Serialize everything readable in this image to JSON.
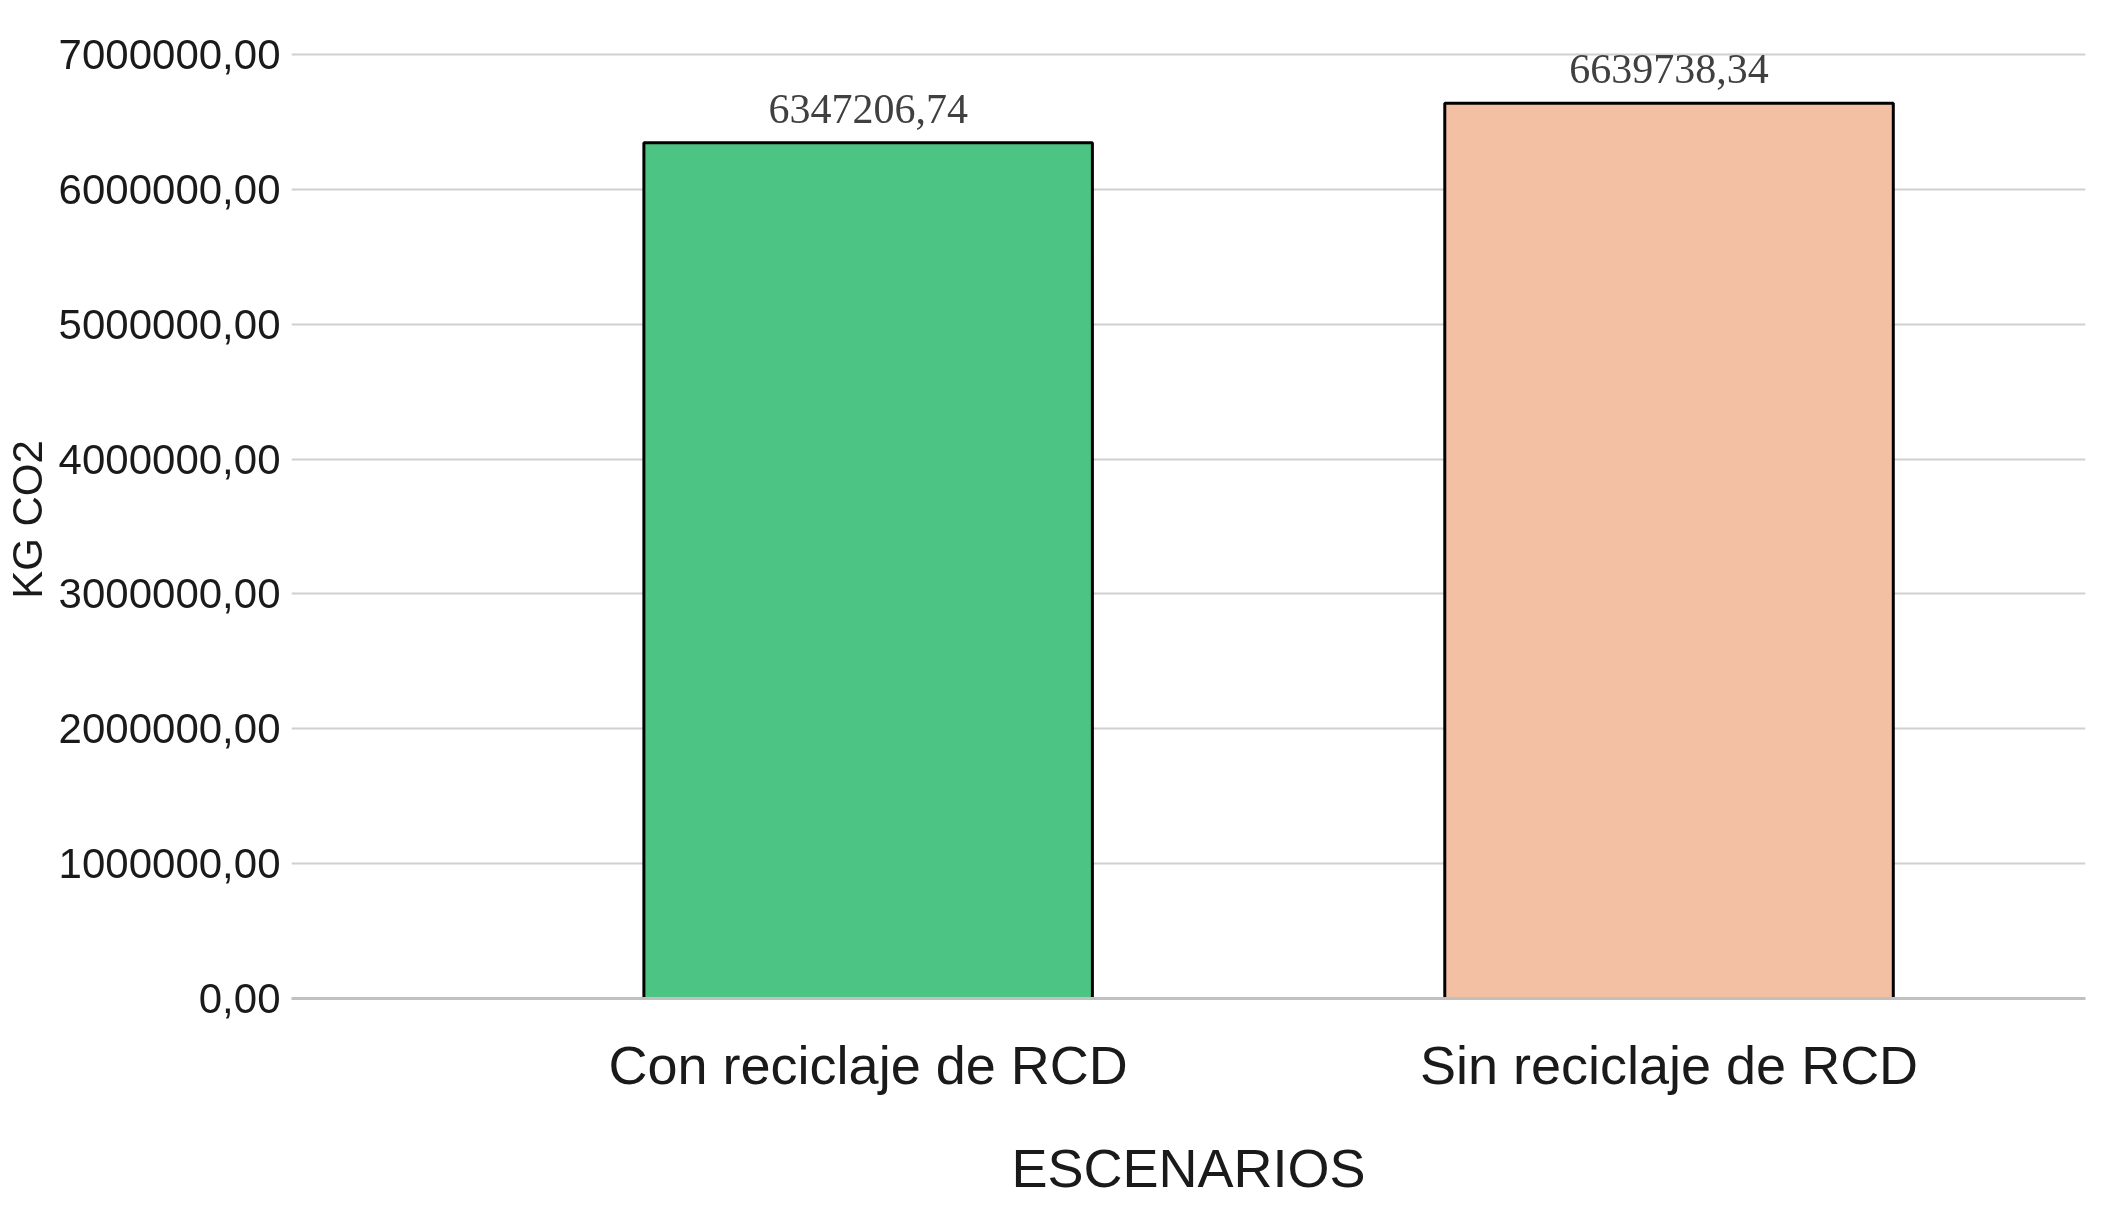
{
  "chart_data": {
    "type": "bar",
    "xlabel": "ESCENARIOS",
    "ylabel": "KG CO2",
    "categories": [
      "Con reciclaje de RCD",
      "Sin reciclaje de RCD"
    ],
    "values": [
      6347206.74,
      6639738.34
    ],
    "colors": [
      "#4cc584",
      "#f4c0a3"
    ],
    "value_labels": [
      "6347206,74",
      "6639738,34"
    ],
    "ylim": [
      0,
      7000000
    ],
    "yticks": [
      {
        "value": 0,
        "label": "0,00"
      },
      {
        "value": 1000000,
        "label": "1000000,00"
      },
      {
        "value": 2000000,
        "label": "2000000,00"
      },
      {
        "value": 3000000,
        "label": "3000000,00"
      },
      {
        "value": 4000000,
        "label": "4000000,00"
      },
      {
        "value": 5000000,
        "label": "5000000,00"
      },
      {
        "value": 6000000,
        "label": "6000000,00"
      },
      {
        "value": 7000000,
        "label": "7000000,00"
      }
    ],
    "grid": "y"
  }
}
